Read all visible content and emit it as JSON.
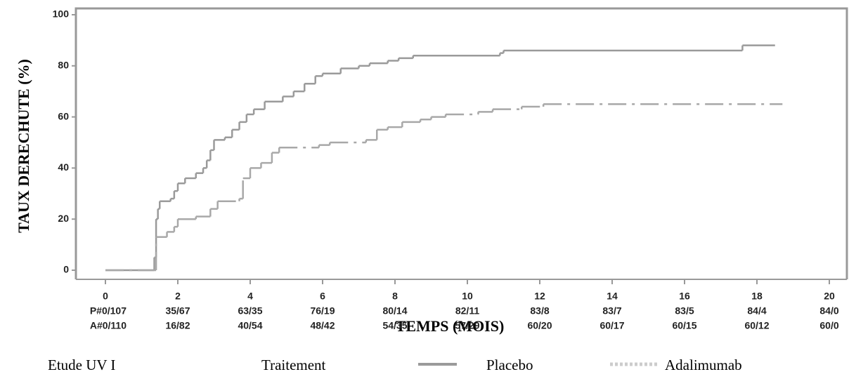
{
  "chart_data": {
    "type": "step",
    "ylabel": "TAUX DERECHUTE (%)",
    "xlabel": "TEMPS (MOIS)",
    "xlim": [
      0,
      20
    ],
    "xticks": [
      0,
      2,
      4,
      6,
      8,
      10,
      12,
      14,
      16,
      18,
      20
    ],
    "ylim": [
      0,
      100
    ],
    "yticks": [
      0,
      20,
      40,
      60,
      80,
      100
    ],
    "series": [
      {
        "name": "Placebo",
        "color": "#9a9a9a",
        "dash": false,
        "x": [
          0,
          1.35,
          1.4,
          1.45,
          1.5,
          1.8,
          1.9,
          2.0,
          2.2,
          2.5,
          2.7,
          2.8,
          2.9,
          3.0,
          3.3,
          3.5,
          3.7,
          3.9,
          4.1,
          4.4,
          4.9,
          5.2,
          5.5,
          5.8,
          6.0,
          6.5,
          7.0,
          7.3,
          7.8,
          8.1,
          8.5,
          10.9,
          11.0,
          17.6,
          18.5
        ],
        "values": [
          0,
          5,
          20,
          24,
          27,
          28,
          31,
          34,
          36,
          38,
          40,
          43,
          47,
          51,
          52,
          55,
          58,
          61,
          63,
          66,
          68,
          70,
          73,
          76,
          77,
          79,
          80,
          81,
          82,
          83,
          84,
          85,
          86,
          88,
          88
        ]
      },
      {
        "name": "Adalimumab",
        "color": "#a8a8a8",
        "dash": true,
        "x": [
          0,
          1.4,
          1.7,
          1.9,
          2.0,
          2.5,
          2.9,
          3.1,
          3.7,
          3.8,
          4.0,
          4.3,
          4.6,
          4.8,
          5.9,
          6.2,
          7.2,
          7.5,
          7.8,
          8.2,
          8.7,
          9.0,
          9.4,
          10.3,
          10.7,
          11.5,
          12.1,
          18.7
        ],
        "values": [
          0,
          13,
          15,
          17,
          20,
          21,
          24,
          27,
          28,
          36,
          40,
          42,
          46,
          48,
          49,
          50,
          51,
          55,
          56,
          58,
          59,
          60,
          61,
          62,
          63,
          64,
          65,
          65
        ]
      }
    ],
    "risk_table": [
      [
        "P#0/107",
        "35/67",
        "63/35",
        "76/19",
        "80/14",
        "82/11",
        "83/8",
        "83/7",
        "83/5",
        "84/4",
        "84/0"
      ],
      [
        "A#0/110",
        "16/82",
        "40/54",
        "48/42",
        "54/35",
        "57/29",
        "60/20",
        "60/17",
        "60/15",
        "60/12",
        "60/0"
      ]
    ],
    "legend": {
      "study": "Etude UV I",
      "title": "Traitement"
    }
  }
}
